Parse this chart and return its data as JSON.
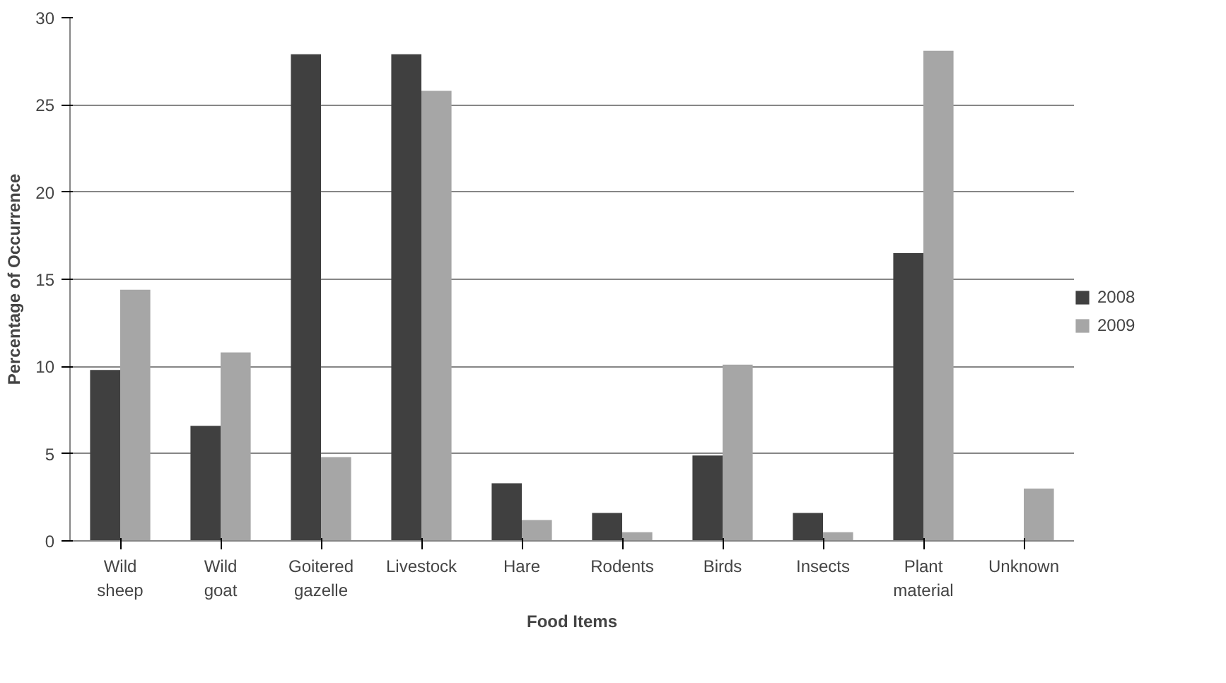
{
  "chart_data": {
    "type": "bar",
    "xlabel": "Food Items",
    "ylabel": "Percentage of Occurrence",
    "categories": [
      "Wild sheep",
      "Wild goat",
      "Goitered gazelle",
      "Livestock",
      "Hare",
      "Rodents",
      "Birds",
      "Insects",
      "Plant material",
      "Unknown"
    ],
    "series": [
      {
        "name": "2008",
        "color": "#404040",
        "values": [
          9.8,
          6.6,
          27.9,
          27.9,
          3.3,
          1.6,
          4.9,
          1.6,
          16.5,
          0
        ]
      },
      {
        "name": "2009",
        "color": "#a6a6a6",
        "values": [
          14.4,
          10.8,
          4.8,
          25.8,
          1.2,
          0.5,
          10.1,
          0.5,
          28.1,
          3.0
        ]
      }
    ],
    "ylim": [
      0,
      30
    ],
    "yticks": [
      0,
      5,
      10,
      15,
      20,
      25,
      30
    ],
    "grid": "y",
    "legend": "right"
  }
}
